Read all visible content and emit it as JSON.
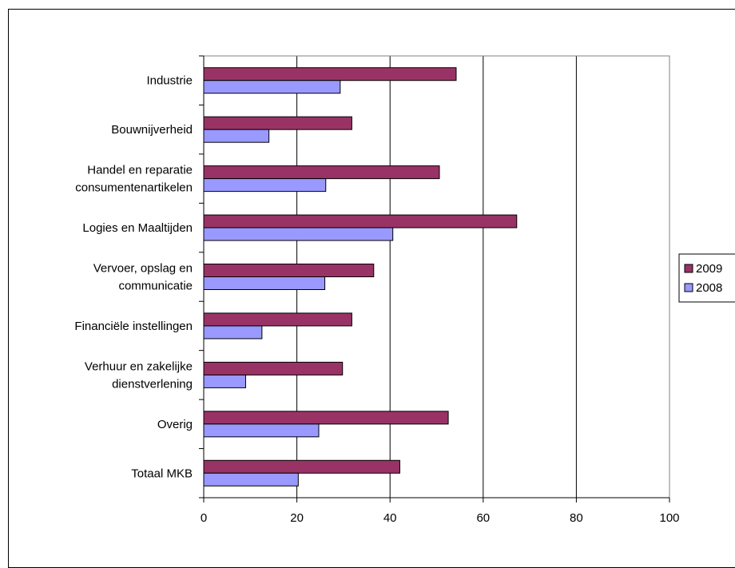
{
  "chart_data": {
    "type": "bar",
    "orientation": "horizontal",
    "categories": [
      [
        "Industrie"
      ],
      [
        "Bouwnijverheid"
      ],
      [
        "Handel en reparatie",
        "consumentenartikelen"
      ],
      [
        "Logies en Maaltijden"
      ],
      [
        "Vervoer, opslag en",
        "communicatie"
      ],
      [
        "Financiële instellingen"
      ],
      [
        "Verhuur en zakelijke",
        "dienstverlening"
      ],
      [
        "Overig"
      ],
      [
        "Totaal MKB"
      ]
    ],
    "series": [
      {
        "name": "2009",
        "color": "#993366",
        "values": [
          54.2,
          31.8,
          50.6,
          67.2,
          36.5,
          31.8,
          29.8,
          52.5,
          42.1
        ]
      },
      {
        "name": "2008",
        "color": "#9999ff",
        "values": [
          29.3,
          14.0,
          26.2,
          40.6,
          26.0,
          12.5,
          9.0,
          24.7,
          20.3
        ]
      }
    ],
    "xlim": [
      0,
      100
    ],
    "xticks": [
      "0",
      "20",
      "40",
      "60",
      "80",
      "100"
    ],
    "grid": "vertical",
    "legend": "right"
  }
}
